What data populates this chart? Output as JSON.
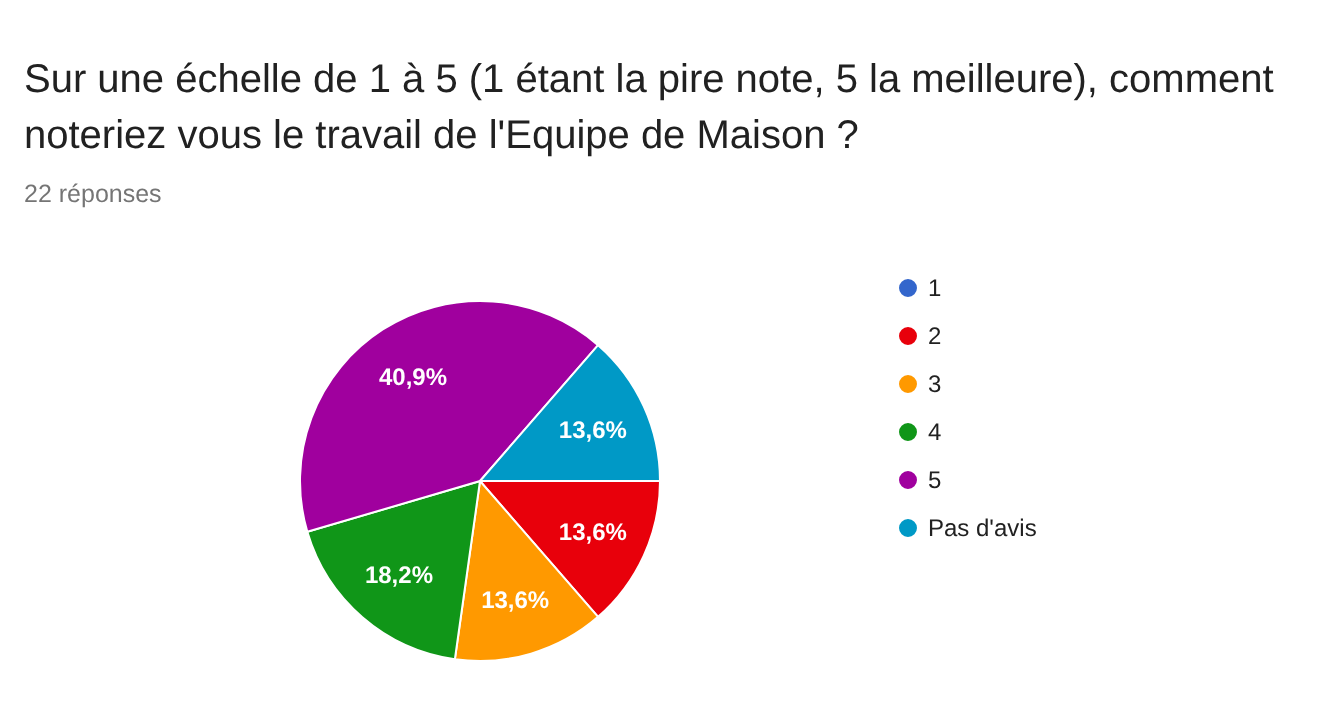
{
  "chart_data": {
    "type": "pie",
    "title": "Sur une échelle de 1 à 5 (1 étant la pire note, 5 la meilleure), comment noteriez vous le travail de l'Equipe de Maison ?",
    "subtitle": "22 réponses",
    "categories": [
      "1",
      "2",
      "3",
      "4",
      "5",
      "Pas d'avis"
    ],
    "values": [
      0,
      13.6,
      13.6,
      18.2,
      40.9,
      13.6
    ],
    "value_labels": [
      null,
      "13,6%",
      "13,6%",
      "18,2%",
      "40,9%",
      "13,6%"
    ],
    "colors": [
      "#3366cc",
      "#e8000b",
      "#ff9900",
      "#109618",
      "#a0009e",
      "#0099c6"
    ],
    "legend": "right"
  }
}
